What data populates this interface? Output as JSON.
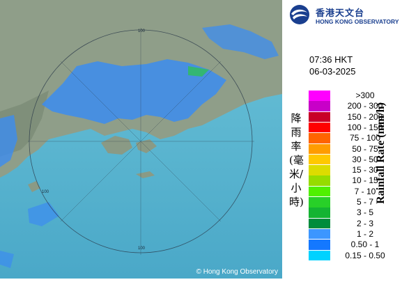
{
  "header": {
    "logo_cn": "香港天文台",
    "logo_en": "HONG KONG OBSERVATORY"
  },
  "timestamp": {
    "time": "07:36 HKT",
    "date": "06-03-2025"
  },
  "legend": {
    "unit_cn": "降雨率(毫米/小時)",
    "unit_en": "Rainfall Rate (mm/h)",
    "items": [
      {
        "label": ">300",
        "color": "#ff00ff"
      },
      {
        "label": "200 - 300",
        "color": "#c800c8"
      },
      {
        "label": "150 - 200",
        "color": "#c80028"
      },
      {
        "label": "100 - 150",
        "color": "#ff0000"
      },
      {
        "label": "75 - 100",
        "color": "#ff6400"
      },
      {
        "label": "50 - 75",
        "color": "#ff9c00"
      },
      {
        "label": "30 - 50",
        "color": "#ffc800"
      },
      {
        "label": "15 - 30",
        "color": "#dcdc00"
      },
      {
        "label": "10 - 15",
        "color": "#96dc00"
      },
      {
        "label": "7 - 10",
        "color": "#50f000"
      },
      {
        "label": "5 - 7",
        "color": "#28d028"
      },
      {
        "label": "3 - 5",
        "color": "#14b432"
      },
      {
        "label": "2 - 3",
        "color": "#008c3c"
      },
      {
        "label": "1 - 2",
        "color": "#3c96ff"
      },
      {
        "label": "0.50 - 1",
        "color": "#1478ff"
      },
      {
        "label": "0.15 - 0.50",
        "color": "#00d2ff"
      }
    ]
  },
  "map": {
    "range_ring_label": "100",
    "copyright": "© Hong Kong Observatory",
    "sea_color": "#5ab8d2",
    "land_color": "#8a9a85",
    "rain_color": "#3c8cf0"
  }
}
